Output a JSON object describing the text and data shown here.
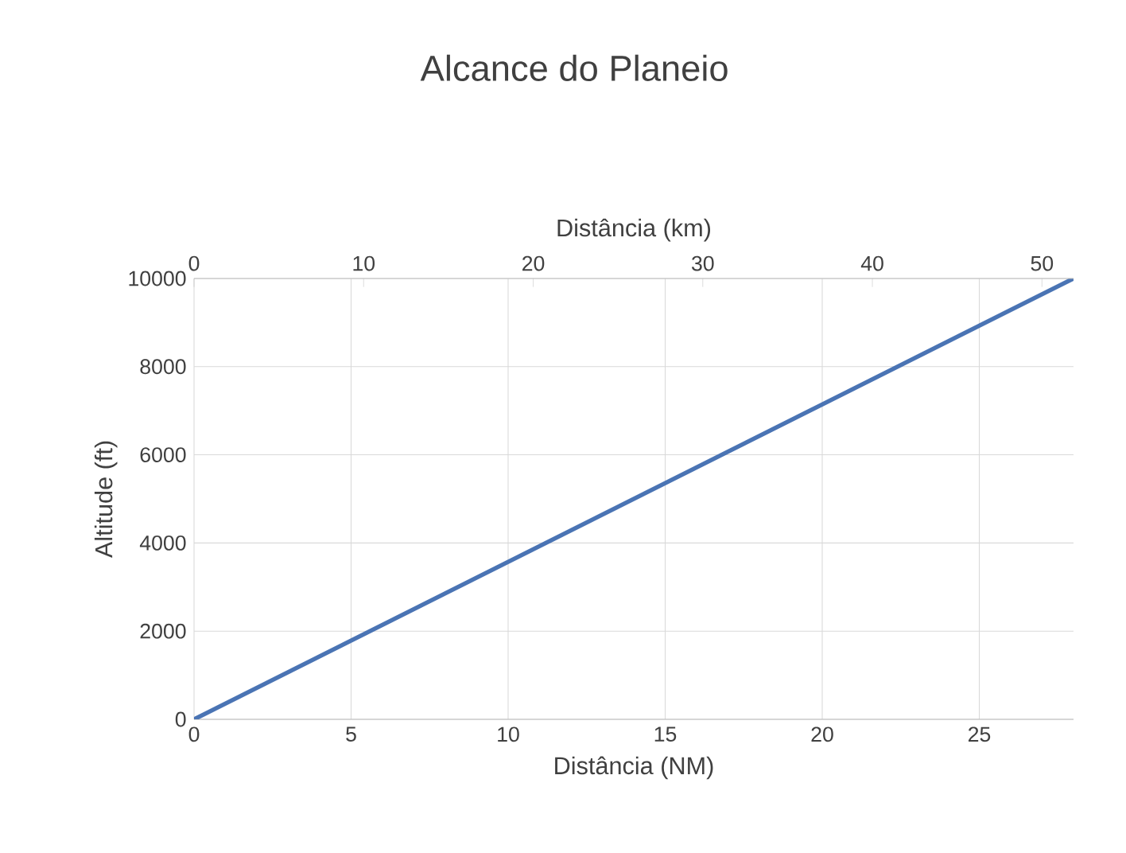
{
  "chart_data": {
    "type": "line",
    "title": "Alcance do Planeio",
    "xlabel": "Distância (NM)",
    "x2label": "Distância (km)",
    "ylabel": "Altitude (ft)",
    "x": [
      0,
      28
    ],
    "series": [
      {
        "color": "#4a74b4",
        "values": [
          0,
          10000
        ]
      }
    ],
    "xlim": [
      0,
      28
    ],
    "xticks": [
      0,
      5,
      10,
      15,
      20,
      25
    ],
    "x2lim": [
      0,
      51.86
    ],
    "x2ticks": [
      0,
      10,
      20,
      30,
      40,
      50
    ],
    "ylim": [
      0,
      10000
    ],
    "yticks": [
      0,
      2000,
      4000,
      6000,
      8000,
      10000
    ],
    "grid": true
  }
}
